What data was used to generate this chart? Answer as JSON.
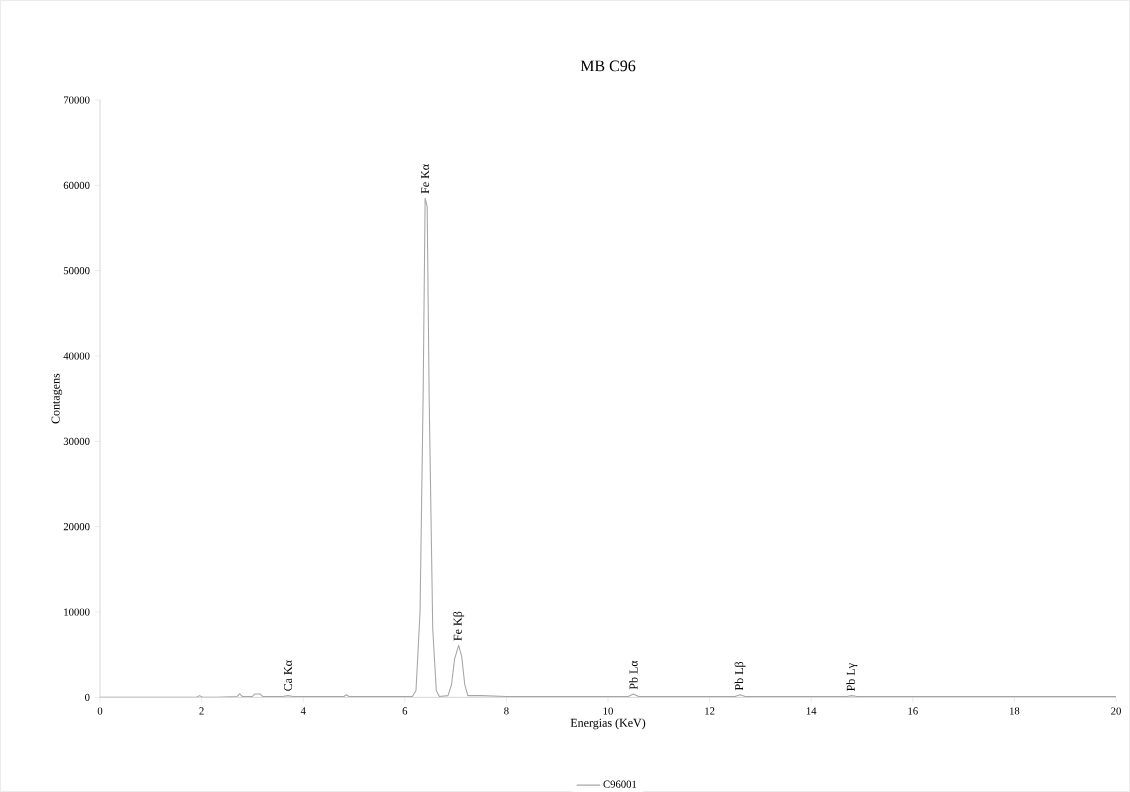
{
  "chart_data": {
    "type": "line",
    "title": "MB C96",
    "xlabel": "Energias (KeV)",
    "ylabel": "Contagens",
    "xlim": [
      0,
      20
    ],
    "xticks": [
      0,
      2,
      4,
      6,
      8,
      10,
      12,
      14,
      16,
      18,
      20
    ],
    "ylim": [
      0,
      70000
    ],
    "yticks": [
      0,
      10000,
      20000,
      30000,
      40000,
      50000,
      60000,
      70000
    ],
    "grid": false,
    "legend": "bottom",
    "marker": "none",
    "line_style": "solid",
    "series": [
      {
        "name": "C96001",
        "color": "#a6a6a6",
        "x": [
          0,
          1.9,
          1.96,
          2.02,
          2.3,
          2.7,
          2.75,
          2.8,
          3.0,
          3.05,
          3.15,
          3.2,
          3.6,
          3.7,
          3.8,
          4.8,
          4.85,
          4.9,
          6.15,
          6.22,
          6.3,
          6.36,
          6.4,
          6.44,
          6.48,
          6.55,
          6.62,
          6.68,
          6.85,
          6.92,
          6.98,
          7.06,
          7.12,
          7.18,
          7.24,
          7.5,
          8.0,
          10.4,
          10.5,
          10.6,
          12.5,
          12.6,
          12.7,
          14.7,
          14.8,
          14.9,
          20
        ],
        "values": [
          0,
          0,
          200,
          0,
          0,
          100,
          400,
          100,
          100,
          400,
          400,
          100,
          100,
          200,
          100,
          100,
          300,
          100,
          100,
          800,
          10000,
          35000,
          58500,
          57500,
          35000,
          8000,
          800,
          100,
          200,
          1500,
          4500,
          6100,
          4800,
          1500,
          200,
          200,
          100,
          100,
          400,
          100,
          100,
          300,
          100,
          100,
          200,
          100,
          100
        ]
      }
    ],
    "annotations": [
      {
        "text": "Fe Kα",
        "x": 6.4,
        "y": 58500
      },
      {
        "text": "Fe Kβ",
        "x": 7.06,
        "y": 6100
      },
      {
        "text": "Ca Kα",
        "x": 3.7,
        "y": 200
      },
      {
        "text": "Pb Lα",
        "x": 10.5,
        "y": 400
      },
      {
        "text": "Pb Lβ",
        "x": 12.6,
        "y": 300
      },
      {
        "text": "Pb Lγ",
        "x": 14.8,
        "y": 200
      }
    ]
  }
}
